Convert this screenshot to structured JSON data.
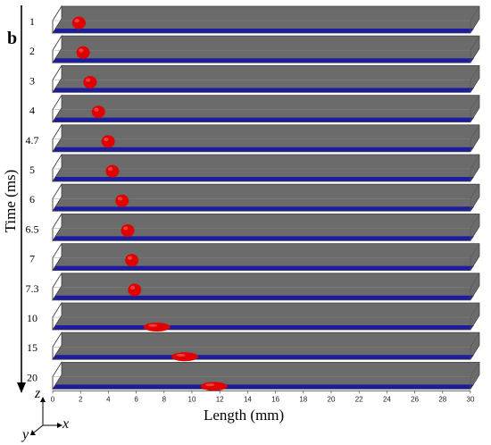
{
  "figure": {
    "panel_label": "b",
    "y_axis_label": "Time (ms)",
    "x_axis_label": "Length (mm)",
    "coord_axes": {
      "z": "z",
      "x": "x",
      "y": "y"
    },
    "colors": {
      "channel_wall": "#6b6b6b",
      "channel_floor": "#1c1c9e",
      "droplet": "#e00000"
    }
  },
  "chart_data": {
    "type": "diagram",
    "x_ticks": [
      0,
      2,
      4,
      6,
      8,
      10,
      12,
      14,
      16,
      18,
      20,
      22,
      24,
      26,
      28,
      30
    ],
    "x_range": [
      0,
      30
    ],
    "frames": [
      {
        "time": "1",
        "droplet_x_mm": 1.5
      },
      {
        "time": "2",
        "droplet_x_mm": 1.8
      },
      {
        "time": "3",
        "droplet_x_mm": 2.3
      },
      {
        "time": "4",
        "droplet_x_mm": 2.9
      },
      {
        "time": "4.7",
        "droplet_x_mm": 3.6
      },
      {
        "time": "5",
        "droplet_x_mm": 3.9
      },
      {
        "time": "6",
        "droplet_x_mm": 4.6
      },
      {
        "time": "6.5",
        "droplet_x_mm": 5.0
      },
      {
        "time": "7",
        "droplet_x_mm": 5.3
      },
      {
        "time": "7.3",
        "droplet_x_mm": 5.5
      },
      {
        "time": "10",
        "droplet_x_mm": 7.1
      },
      {
        "time": "15",
        "droplet_x_mm": 9.1
      },
      {
        "time": "20",
        "droplet_x_mm": 11.2
      }
    ]
  }
}
